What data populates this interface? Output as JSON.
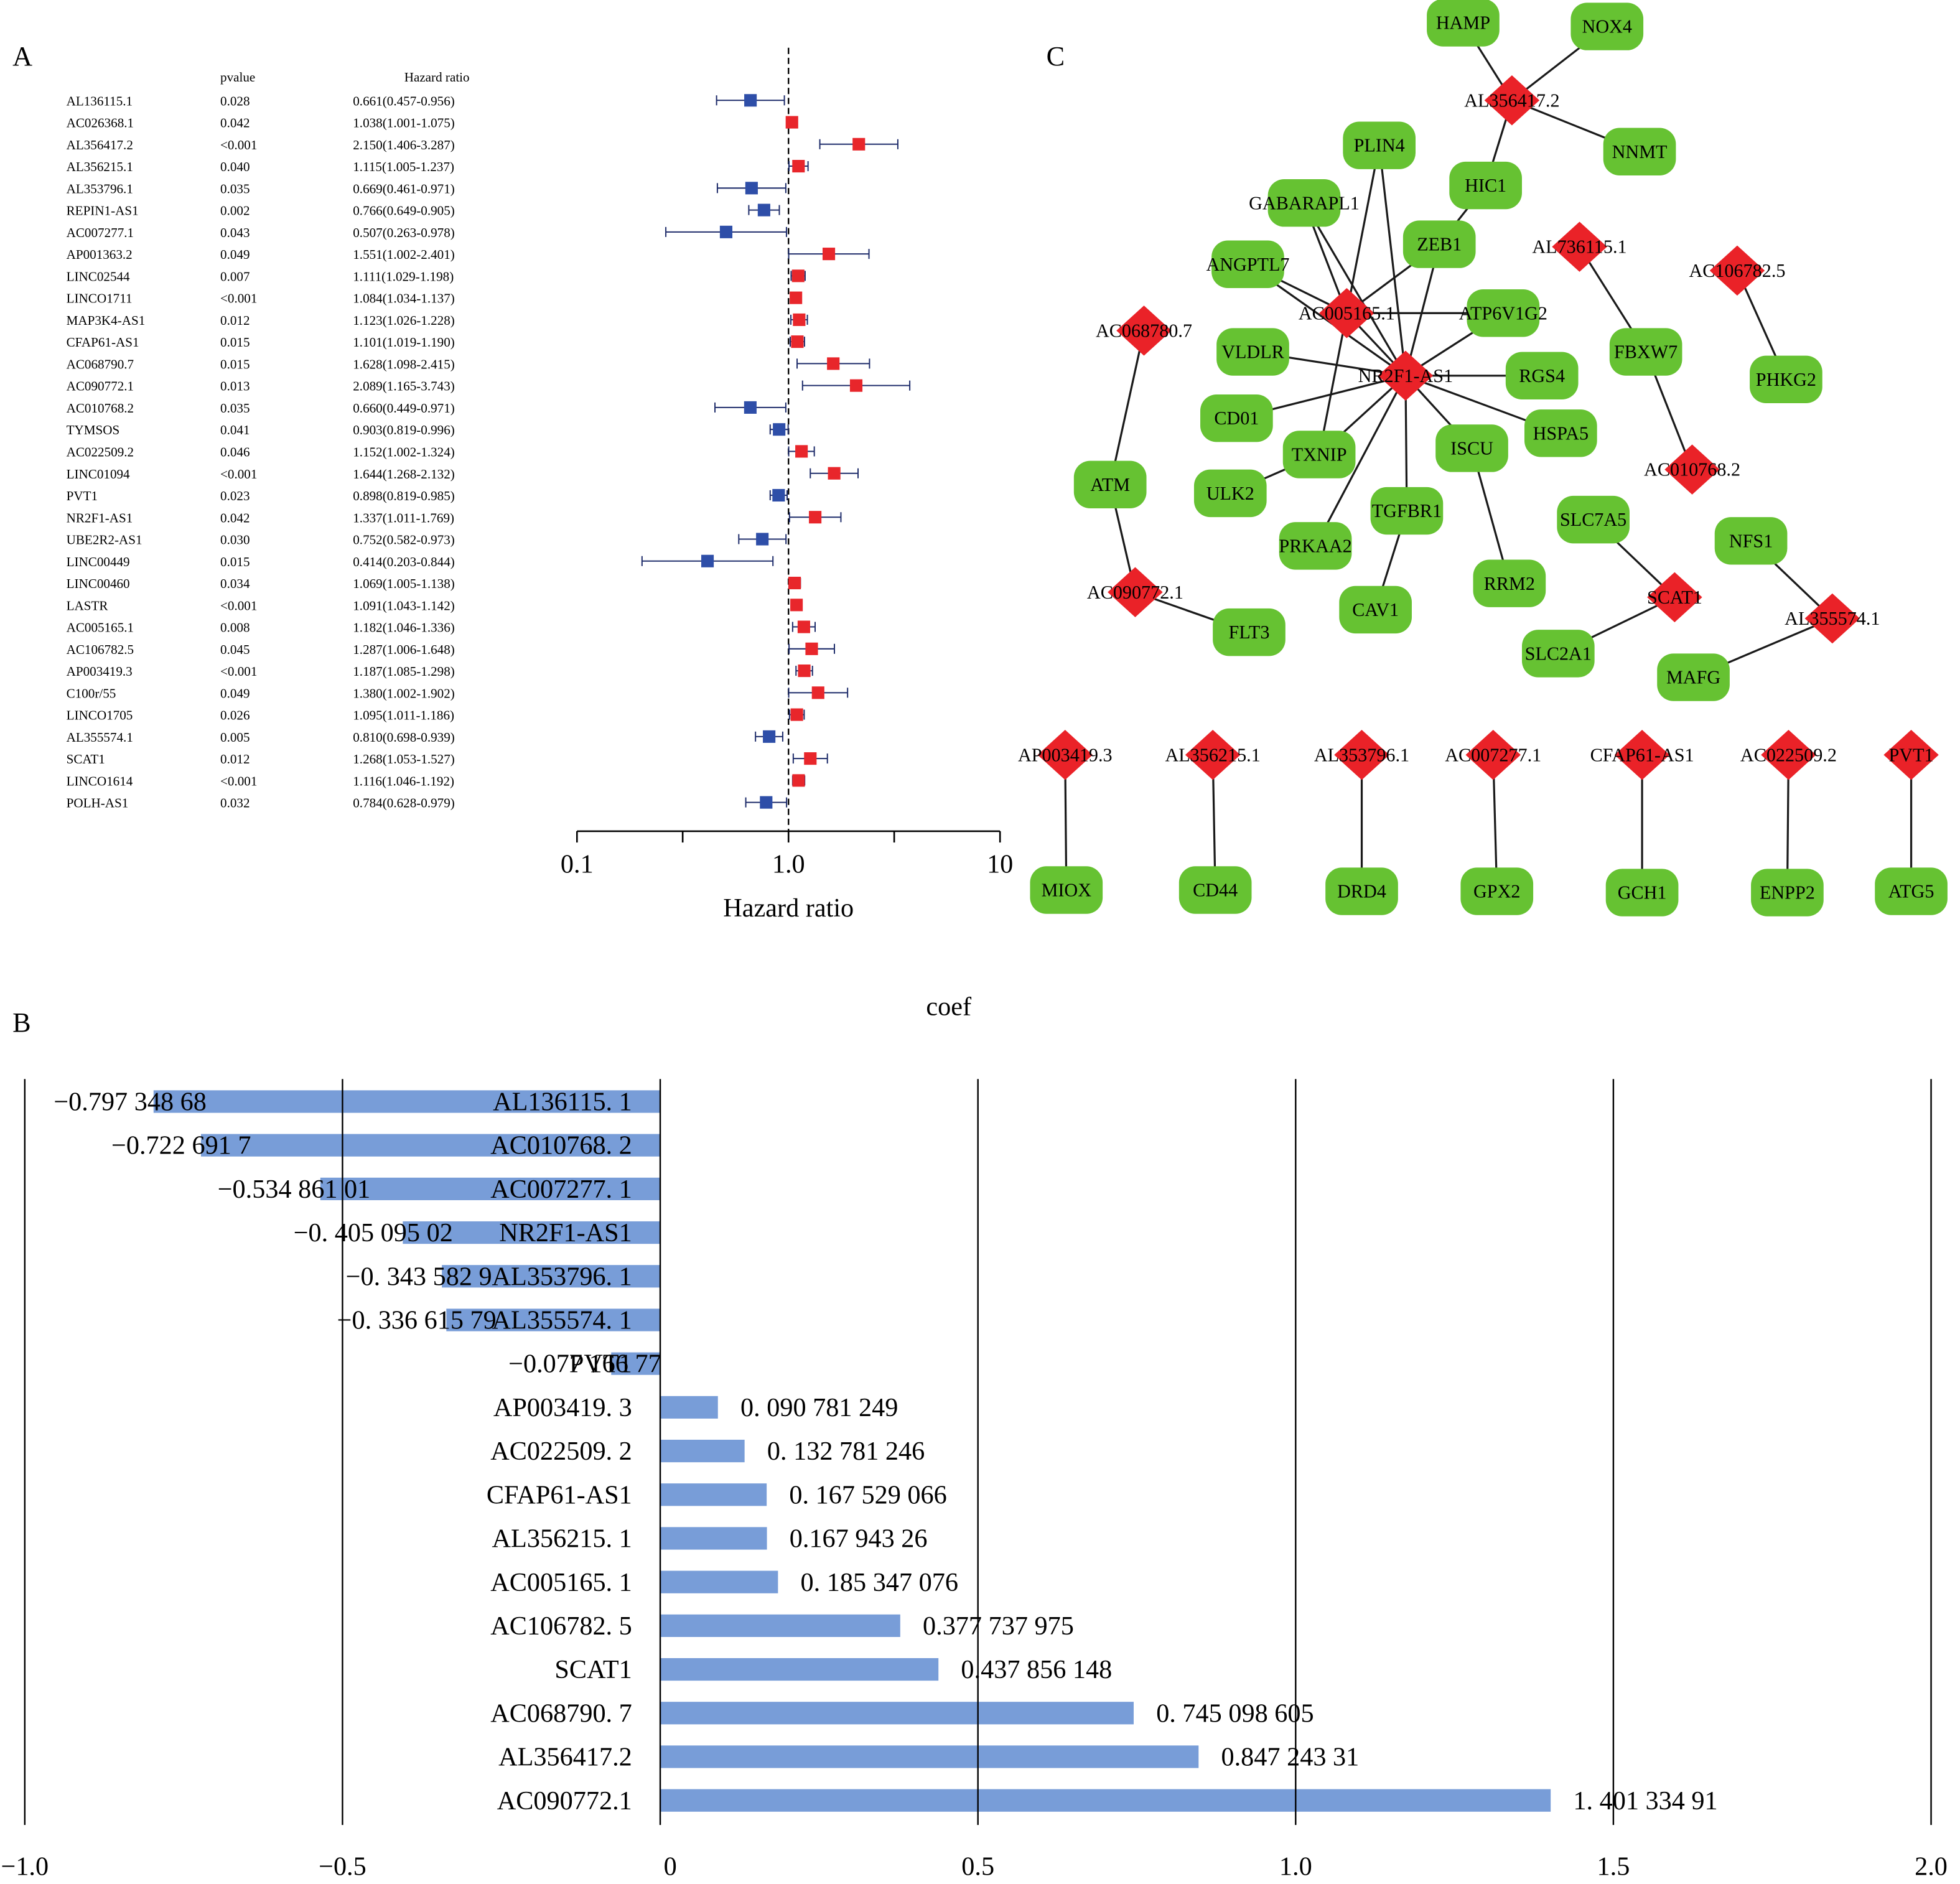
{
  "panels": {
    "a": "A",
    "b": "B",
    "c": "C"
  },
  "chart_data": [
    {
      "type": "forest",
      "panel": "A",
      "headers": {
        "pvalue": "pvalue",
        "hr": "Hazard ratio"
      },
      "xlabel": "Hazard ratio",
      "xscale": "log",
      "xlim": [
        0.1,
        10
      ],
      "ticks": [
        "0.1",
        "1.0",
        "10"
      ],
      "reference_line": 1.0,
      "colors": {
        "protective": "#2e4ea8",
        "risk": "#e8262b",
        "ci": "#1f2d6b"
      },
      "rows": [
        {
          "gene": "AL136115.1",
          "p": "0.028",
          "hr_text": "0.661(0.457-0.956)",
          "hr": 0.661,
          "lo": 0.457,
          "hi": 0.956
        },
        {
          "gene": "AC026368.1",
          "p": "0.042",
          "hr_text": "1.038(1.001-1.075)",
          "hr": 1.038,
          "lo": 1.001,
          "hi": 1.075
        },
        {
          "gene": "AL356417.2",
          "p": "<0.001",
          "hr_text": "2.150(1.406-3.287)",
          "hr": 2.15,
          "lo": 1.406,
          "hi": 3.287
        },
        {
          "gene": "AL356215.1",
          "p": "0.040",
          "hr_text": "1.115(1.005-1.237)",
          "hr": 1.115,
          "lo": 1.005,
          "hi": 1.237
        },
        {
          "gene": "AL353796.1",
          "p": "0.035",
          "hr_text": "0.669(0.461-0.971)",
          "hr": 0.669,
          "lo": 0.461,
          "hi": 0.971
        },
        {
          "gene": "REPIN1-AS1",
          "p": "0.002",
          "hr_text": "0.766(0.649-0.905)",
          "hr": 0.766,
          "lo": 0.649,
          "hi": 0.905
        },
        {
          "gene": "AC007277.1",
          "p": "0.043",
          "hr_text": "0.507(0.263-0.978)",
          "hr": 0.507,
          "lo": 0.263,
          "hi": 0.978
        },
        {
          "gene": "AP001363.2",
          "p": "0.049",
          "hr_text": "1.551(1.002-2.401)",
          "hr": 1.551,
          "lo": 1.002,
          "hi": 2.401
        },
        {
          "gene": "LINC02544",
          "p": "0.007",
          "hr_text": "1.111(1.029-1.198)",
          "hr": 1.111,
          "lo": 1.029,
          "hi": 1.198
        },
        {
          "gene": "LINCO1711",
          "p": "<0.001",
          "hr_text": "1.084(1.034-1.137)",
          "hr": 1.084,
          "lo": 1.034,
          "hi": 1.137
        },
        {
          "gene": "MAP3K4-AS1",
          "p": "0.012",
          "hr_text": "1.123(1.026-1.228)",
          "hr": 1.123,
          "lo": 1.026,
          "hi": 1.228
        },
        {
          "gene": "CFAP61-AS1",
          "p": "0.015",
          "hr_text": "1.101(1.019-1.190)",
          "hr": 1.101,
          "lo": 1.019,
          "hi": 1.19
        },
        {
          "gene": "AC068790.7",
          "p": "0.015",
          "hr_text": "1.628(1.098-2.415)",
          "hr": 1.628,
          "lo": 1.098,
          "hi": 2.415
        },
        {
          "gene": "AC090772.1",
          "p": "0.013",
          "hr_text": "2.089(1.165-3.743)",
          "hr": 2.089,
          "lo": 1.165,
          "hi": 3.743
        },
        {
          "gene": "AC010768.2",
          "p": "0.035",
          "hr_text": "0.660(0.449-0.971)",
          "hr": 0.66,
          "lo": 0.449,
          "hi": 0.971
        },
        {
          "gene": "TYMSOS",
          "p": "0.041",
          "hr_text": "0.903(0.819-0.996)",
          "hr": 0.903,
          "lo": 0.819,
          "hi": 0.996
        },
        {
          "gene": "AC022509.2",
          "p": "0.046",
          "hr_text": "1.152(1.002-1.324)",
          "hr": 1.152,
          "lo": 1.002,
          "hi": 1.324
        },
        {
          "gene": "LINC01094",
          "p": "<0.001",
          "hr_text": "1.644(1.268-2.132)",
          "hr": 1.644,
          "lo": 1.268,
          "hi": 2.132
        },
        {
          "gene": "PVT1",
          "p": "0.023",
          "hr_text": "0.898(0.819-0.985)",
          "hr": 0.898,
          "lo": 0.819,
          "hi": 0.985
        },
        {
          "gene": "NR2F1-AS1",
          "p": "0.042",
          "hr_text": "1.337(1.011-1.769)",
          "hr": 1.337,
          "lo": 1.011,
          "hi": 1.769
        },
        {
          "gene": "UBE2R2-AS1",
          "p": "0.030",
          "hr_text": "0.752(0.582-0.973)",
          "hr": 0.752,
          "lo": 0.582,
          "hi": 0.973
        },
        {
          "gene": "LINC00449",
          "p": "0.015",
          "hr_text": "0.414(0.203-0.844)",
          "hr": 0.414,
          "lo": 0.203,
          "hi": 0.844
        },
        {
          "gene": "LINC00460",
          "p": "0.034",
          "hr_text": "1.069(1.005-1.138)",
          "hr": 1.069,
          "lo": 1.005,
          "hi": 1.138
        },
        {
          "gene": "LASTR",
          "p": "<0.001",
          "hr_text": "1.091(1.043-1.142)",
          "hr": 1.091,
          "lo": 1.043,
          "hi": 1.142
        },
        {
          "gene": "AC005165.1",
          "p": "0.008",
          "hr_text": "1.182(1.046-1.336)",
          "hr": 1.182,
          "lo": 1.046,
          "hi": 1.336
        },
        {
          "gene": "AC106782.5",
          "p": "0.045",
          "hr_text": "1.287(1.006-1.648)",
          "hr": 1.287,
          "lo": 1.006,
          "hi": 1.648
        },
        {
          "gene": "AP003419.3",
          "p": "<0.001",
          "hr_text": "1.187(1.085-1.298)",
          "hr": 1.187,
          "lo": 1.085,
          "hi": 1.298
        },
        {
          "gene": "C100r/55",
          "p": "0.049",
          "hr_text": "1.380(1.002-1.902)",
          "hr": 1.38,
          "lo": 1.002,
          "hi": 1.902
        },
        {
          "gene": "LINCO1705",
          "p": "0.026",
          "hr_text": "1.095(1.011-1.186)",
          "hr": 1.095,
          "lo": 1.011,
          "hi": 1.186
        },
        {
          "gene": "AL355574.1",
          "p": "0.005",
          "hr_text": "0.810(0.698-0.939)",
          "hr": 0.81,
          "lo": 0.698,
          "hi": 0.939
        },
        {
          "gene": "SCAT1",
          "p": "0.012",
          "hr_text": "1.268(1.053-1.527)",
          "hr": 1.268,
          "lo": 1.053,
          "hi": 1.527
        },
        {
          "gene": "LINCO1614",
          "p": "<0.001",
          "hr_text": "1.116(1.046-1.192)",
          "hr": 1.116,
          "lo": 1.046,
          "hi": 1.192
        },
        {
          "gene": "POLH-AS1",
          "p": "0.032",
          "hr_text": "0.784(0.628-0.979)",
          "hr": 0.784,
          "lo": 0.628,
          "hi": 0.979
        }
      ]
    },
    {
      "type": "bar",
      "orientation": "horizontal",
      "panel": "B",
      "title": "coef",
      "xlim": [
        -1.0,
        2.0
      ],
      "ticks": [
        "−1.0",
        "−0.5",
        "0",
        "0.5",
        "1.0",
        "1.5",
        "2.0"
      ],
      "tick_values": [
        -1.0,
        -0.5,
        0,
        0.5,
        1.0,
        1.5,
        2.0
      ],
      "grid": true,
      "bar_color": "#789dd8",
      "categories": [
        "AL136115. 1",
        "AC010768. 2",
        "AC007277. 1",
        "NR2F1-AS1",
        "AL353796. 1",
        "AL355574. 1",
        "PVT1",
        "AP003419. 3",
        "AC022509. 2",
        "CFAP61-AS1",
        "AL356215. 1",
        "AC005165. 1",
        "AC106782. 5",
        "SCAT1",
        "AC068790. 7",
        "AL356417.2",
        "AC090772.1"
      ],
      "values": [
        -0.79734868,
        -0.7226917,
        -0.53486101,
        -0.40509502,
        -0.3435829,
        -0.33661579,
        -0.07716677,
        0.090781249,
        0.132781246,
        0.167529066,
        0.16794326,
        0.185347076,
        0.377737975,
        0.437856148,
        0.745098605,
        0.84724331,
        1.40133491
      ],
      "value_labels": [
        "−0.797 348 68",
        "−0.722 691 7",
        "−0.534 861 01",
        "−0. 405 095 02",
        "−0. 343 582 9",
        "−0. 336 615 79",
        "−0.077 166 77",
        "0. 090 781 249",
        "0. 132 781 246",
        "0. 167 529 066",
        "0.167 943 26",
        "0. 185 347 076",
        "0.377 737 975",
        "0.437 856 148",
        "0. 745 098 605",
        "0.847 243 31",
        "1. 401 334 91"
      ]
    }
  ],
  "network": {
    "panel": "C",
    "colors": {
      "lncrna": "#ea2228",
      "gene": "#66c232"
    },
    "nodes": [
      {
        "id": "HAMP",
        "type": "gene"
      },
      {
        "id": "NOX4",
        "type": "gene"
      },
      {
        "id": "AL356417.2",
        "type": "lncrna"
      },
      {
        "id": "NNMT",
        "type": "gene"
      },
      {
        "id": "PLIN4",
        "type": "gene"
      },
      {
        "id": "HIC1",
        "type": "gene"
      },
      {
        "id": "GABARAPL1",
        "type": "gene"
      },
      {
        "id": "ZEB1",
        "type": "gene"
      },
      {
        "id": "AL736115.1",
        "type": "lncrna"
      },
      {
        "id": "AC106782.5",
        "type": "lncrna"
      },
      {
        "id": "ANGPTL7",
        "type": "gene"
      },
      {
        "id": "AC005165.1",
        "type": "lncrna"
      },
      {
        "id": "ATP6V1G2",
        "type": "gene"
      },
      {
        "id": "AC068780.7",
        "type": "lncrna"
      },
      {
        "id": "VLDLR",
        "type": "gene"
      },
      {
        "id": "FBXW7",
        "type": "gene"
      },
      {
        "id": "NR2F1-AS1",
        "type": "lncrna"
      },
      {
        "id": "RGS4",
        "type": "gene"
      },
      {
        "id": "PHKG2",
        "type": "gene"
      },
      {
        "id": "CD01",
        "type": "gene"
      },
      {
        "id": "HSPA5",
        "type": "gene"
      },
      {
        "id": "ISCU",
        "type": "gene"
      },
      {
        "id": "TXNIP",
        "type": "gene"
      },
      {
        "id": "AC010768.2",
        "type": "lncrna"
      },
      {
        "id": "ATM",
        "type": "gene"
      },
      {
        "id": "ULK2",
        "type": "gene"
      },
      {
        "id": "TGFBR1",
        "type": "gene"
      },
      {
        "id": "SLC7A5",
        "type": "gene"
      },
      {
        "id": "NFS1",
        "type": "gene"
      },
      {
        "id": "PRKAA2",
        "type": "gene"
      },
      {
        "id": "RRM2",
        "type": "gene"
      },
      {
        "id": "AC090772.1",
        "type": "lncrna"
      },
      {
        "id": "SCAT1",
        "type": "lncrna"
      },
      {
        "id": "CAV1",
        "type": "gene"
      },
      {
        "id": "AL355574.1",
        "type": "lncrna"
      },
      {
        "id": "FLT3",
        "type": "gene"
      },
      {
        "id": "SLC2A1",
        "type": "gene"
      },
      {
        "id": "MAFG",
        "type": "gene"
      },
      {
        "id": "AP003419.3",
        "type": "lncrna"
      },
      {
        "id": "AL356215.1",
        "type": "lncrna"
      },
      {
        "id": "AL353796.1",
        "type": "lncrna"
      },
      {
        "id": "AC007277.1",
        "type": "lncrna"
      },
      {
        "id": "CFAP61-AS1",
        "type": "lncrna"
      },
      {
        "id": "AC022509.2",
        "type": "lncrna"
      },
      {
        "id": "PVT1",
        "type": "lncrna"
      },
      {
        "id": "MIOX",
        "type": "gene"
      },
      {
        "id": "CD44",
        "type": "gene"
      },
      {
        "id": "DRD4",
        "type": "gene"
      },
      {
        "id": "GPX2",
        "type": "gene"
      },
      {
        "id": "GCH1",
        "type": "gene"
      },
      {
        "id": "ENPP2",
        "type": "gene"
      },
      {
        "id": "ATG5",
        "type": "gene"
      }
    ],
    "edges": [
      [
        "AL356417.2",
        "HAMP"
      ],
      [
        "AL356417.2",
        "NOX4"
      ],
      [
        "AL356417.2",
        "NNMT"
      ],
      [
        "AL356417.2",
        "HIC1"
      ],
      [
        "HIC1",
        "ZEB1"
      ],
      [
        "NR2F1-AS1",
        "ANGPTL7"
      ],
      [
        "NR2F1-AS1",
        "GABARAPL1"
      ],
      [
        "NR2F1-AS1",
        "PLIN4"
      ],
      [
        "NR2F1-AS1",
        "ZEB1"
      ],
      [
        "NR2F1-AS1",
        "ATP6V1G2"
      ],
      [
        "NR2F1-AS1",
        "VLDLR"
      ],
      [
        "NR2F1-AS1",
        "RGS4"
      ],
      [
        "NR2F1-AS1",
        "CD01"
      ],
      [
        "NR2F1-AS1",
        "HSPA5"
      ],
      [
        "NR2F1-AS1",
        "ISCU"
      ],
      [
        "NR2F1-AS1",
        "TXNIP"
      ],
      [
        "NR2F1-AS1",
        "TGFBR1"
      ],
      [
        "NR2F1-AS1",
        "PRKAA2"
      ],
      [
        "NR2F1-AS1",
        "AC005165.1"
      ],
      [
        "ISCU",
        "RRM2"
      ],
      [
        "TXNIP",
        "ULK2"
      ],
      [
        "TGFBR1",
        "CAV1"
      ],
      [
        "AC005165.1",
        "ANGPTL7"
      ],
      [
        "AC005165.1",
        "GABARAPL1"
      ],
      [
        "AC005165.1",
        "PLIN4"
      ],
      [
        "AC005165.1",
        "ZEB1"
      ],
      [
        "AC005165.1",
        "ATP6V1G2"
      ],
      [
        "AC005165.1",
        "TXNIP"
      ],
      [
        "AL736115.1",
        "FBXW7"
      ],
      [
        "FBXW7",
        "AC010768.2"
      ],
      [
        "AC106782.5",
        "PHKG2"
      ],
      [
        "AC068780.7",
        "ATM"
      ],
      [
        "ATM",
        "AC090772.1"
      ],
      [
        "AC090772.1",
        "FLT3"
      ],
      [
        "SLC7A5",
        "SCAT1"
      ],
      [
        "SCAT1",
        "SLC2A1"
      ],
      [
        "NFS1",
        "AL355574.1"
      ],
      [
        "AL355574.1",
        "MAFG"
      ],
      [
        "AP003419.3",
        "MIOX"
      ],
      [
        "AL356215.1",
        "CD44"
      ],
      [
        "AL353796.1",
        "DRD4"
      ],
      [
        "AC007277.1",
        "GPX2"
      ],
      [
        "CFAP61-AS1",
        "GCH1"
      ],
      [
        "AC022509.2",
        "ENPP2"
      ],
      [
        "PVT1",
        "ATG5"
      ]
    ]
  }
}
